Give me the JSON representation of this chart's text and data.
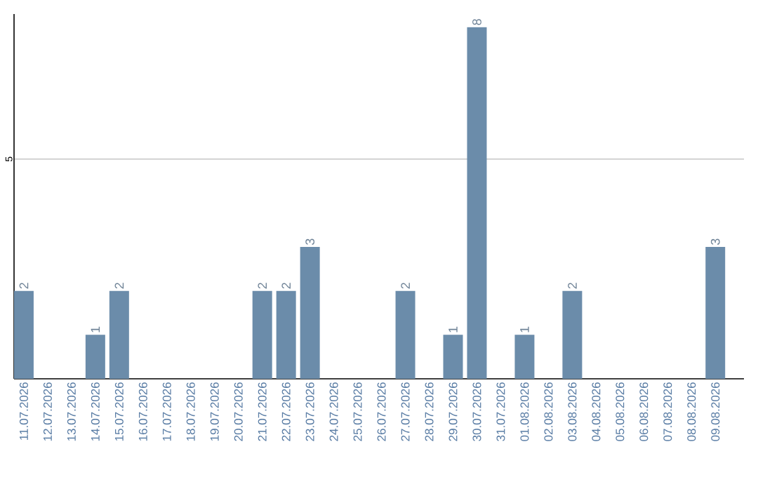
{
  "chart_data": {
    "type": "bar",
    "categories": [
      "11.07.2026",
      "12.07.2026",
      "13.07.2026",
      "14.07.2026",
      "15.07.2026",
      "16.07.2026",
      "17.07.2026",
      "18.07.2026",
      "19.07.2026",
      "20.07.2026",
      "21.07.2026",
      "22.07.2026",
      "23.07.2026",
      "24.07.2026",
      "25.07.2026",
      "26.07.2026",
      "27.07.2026",
      "28.07.2026",
      "29.07.2026",
      "30.07.2026",
      "31.07.2026",
      "01.08.2026",
      "02.08.2026",
      "03.08.2026",
      "04.08.2026",
      "05.08.2026",
      "06.08.2026",
      "07.08.2026",
      "08.08.2026",
      "09.08.2026"
    ],
    "values": [
      2,
      0,
      0,
      1,
      2,
      0,
      0,
      0,
      0,
      0,
      2,
      2,
      3,
      0,
      0,
      0,
      2,
      0,
      1,
      8,
      0,
      1,
      0,
      2,
      0,
      0,
      0,
      0,
      0,
      3
    ],
    "value_labels": [
      "2",
      null,
      null,
      "1",
      "2",
      null,
      null,
      null,
      null,
      null,
      "2",
      "2",
      "3",
      null,
      null,
      null,
      "2",
      null,
      "1",
      "8",
      null,
      "1",
      null,
      "2",
      null,
      null,
      null,
      null,
      null,
      "3"
    ],
    "color": "#6b8caa",
    "ylim": [
      0,
      8.3
    ],
    "yticks": [
      5
    ],
    "grid": "y"
  }
}
